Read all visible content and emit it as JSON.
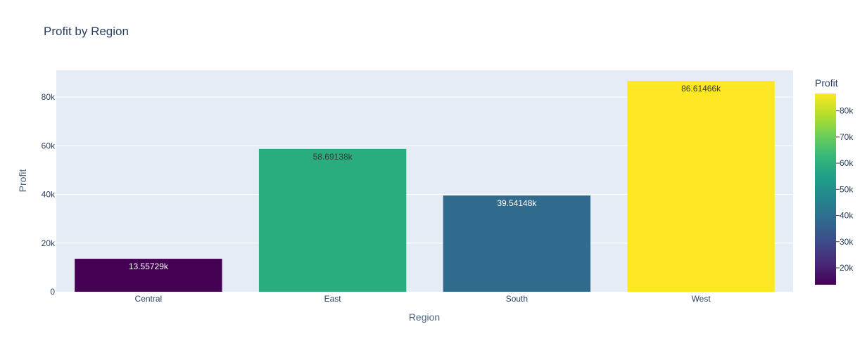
{
  "chart_data": {
    "type": "bar",
    "title": "Profit by Region",
    "xlabel": "Region",
    "ylabel": "Profit",
    "categories": [
      "Central",
      "East",
      "South",
      "West"
    ],
    "values": [
      13557.29,
      58691.38,
      39541.48,
      86614.66
    ],
    "value_labels": [
      "13.55729k",
      "58.69138k",
      "39.54148k",
      "86.61466k"
    ],
    "ylim": [
      0,
      91000
    ],
    "yticks": [
      0,
      20000,
      40000,
      60000,
      80000
    ],
    "ytick_labels": [
      "0",
      "20k",
      "40k",
      "60k",
      "80k"
    ],
    "grid": true,
    "plot_background": "#e5ecf6",
    "colorscale": "Viridis",
    "colorbar": {
      "title": "Profit",
      "range": [
        13557.29,
        86614.66
      ],
      "ticks": [
        20000,
        30000,
        40000,
        50000,
        60000,
        70000,
        80000
      ],
      "tick_labels": [
        "20k",
        "30k",
        "40k",
        "50k",
        "60k",
        "70k",
        "80k"
      ]
    },
    "bar_colors": [
      "#440154",
      "#2aad7e",
      "#306b8d",
      "#fde725"
    ],
    "label_colors": [
      "#ffffff",
      "#3a3a3a",
      "#ffffff",
      "#3a3a3a"
    ]
  }
}
